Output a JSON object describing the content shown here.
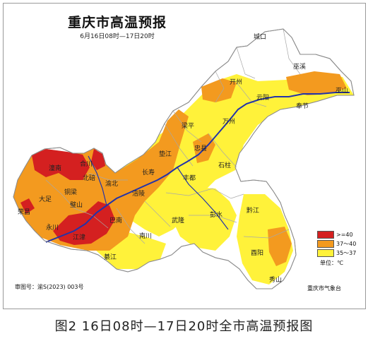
{
  "title": "重庆市高温预报",
  "subtitle": "6月16日08时—17日20时",
  "caption": "图2  16日08时—17日20时全市高温预报图",
  "approval_no": "审图号：渝S(2023) 003号",
  "source": "重庆市气象台",
  "legend": {
    "unit": "单位：℃",
    "items": [
      {
        "label": ">=40",
        "color": "#d42020"
      },
      {
        "label": "37～40",
        "color": "#f39a1f"
      },
      {
        "label": "35～37",
        "color": "#fff23a"
      }
    ]
  },
  "places": {
    "chengkou": "城口",
    "wuxi": "巫溪",
    "wushan": "巫山",
    "kaizhou": "开州",
    "yunyang": "云阳",
    "fengjie": "奉节",
    "wanzhou": "万州",
    "liangping": "梁平",
    "zhongxian": "忠县",
    "dianjiang": "垫江",
    "shizhu": "石柱",
    "changshou": "长寿",
    "fuling": "涪陵",
    "fengdu": "丰都",
    "hechuan": "合川",
    "beibei": "北碚",
    "yubei": "渝北",
    "tongnan": "潼南",
    "dazu": "大足",
    "tongliang": "铜梁",
    "bishan": "璧山",
    "rongchang": "荣昌",
    "yongchuan": "永川",
    "jiangjin": "江津",
    "banan": "巴南",
    "nanchuan": "南川",
    "wulong": "武隆",
    "pengshui": "彭水",
    "qianjiang": "黔江",
    "youyang": "酉阳",
    "xiushan": "秀山",
    "qijiang": "綦江"
  }
}
